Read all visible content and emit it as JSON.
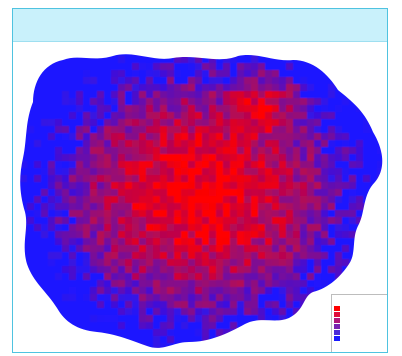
{
  "colors": {
    "frame_border": "#4fc3e0",
    "title_bar": "#c9f1fb",
    "hot": "#ff0000",
    "mid": "#8a1fa0",
    "cold": "#1a1aff"
  },
  "header": {
    "title": ""
  },
  "map": {
    "type": "gridded heat map",
    "palette": [
      "#ff0000",
      "#e0105a",
      "#b0188a",
      "#7a20b0",
      "#4a24d8",
      "#1a1aff"
    ]
  },
  "legend": {
    "title": "",
    "items": [
      {
        "color": "#ff0000",
        "label": ""
      },
      {
        "color": "#e00b3a",
        "label": ""
      },
      {
        "color": "#b0167a",
        "label": ""
      },
      {
        "color": "#7a22b0",
        "label": ""
      },
      {
        "color": "#4a2ad8",
        "label": ""
      },
      {
        "color": "#1a1aff",
        "label": ""
      }
    ]
  }
}
